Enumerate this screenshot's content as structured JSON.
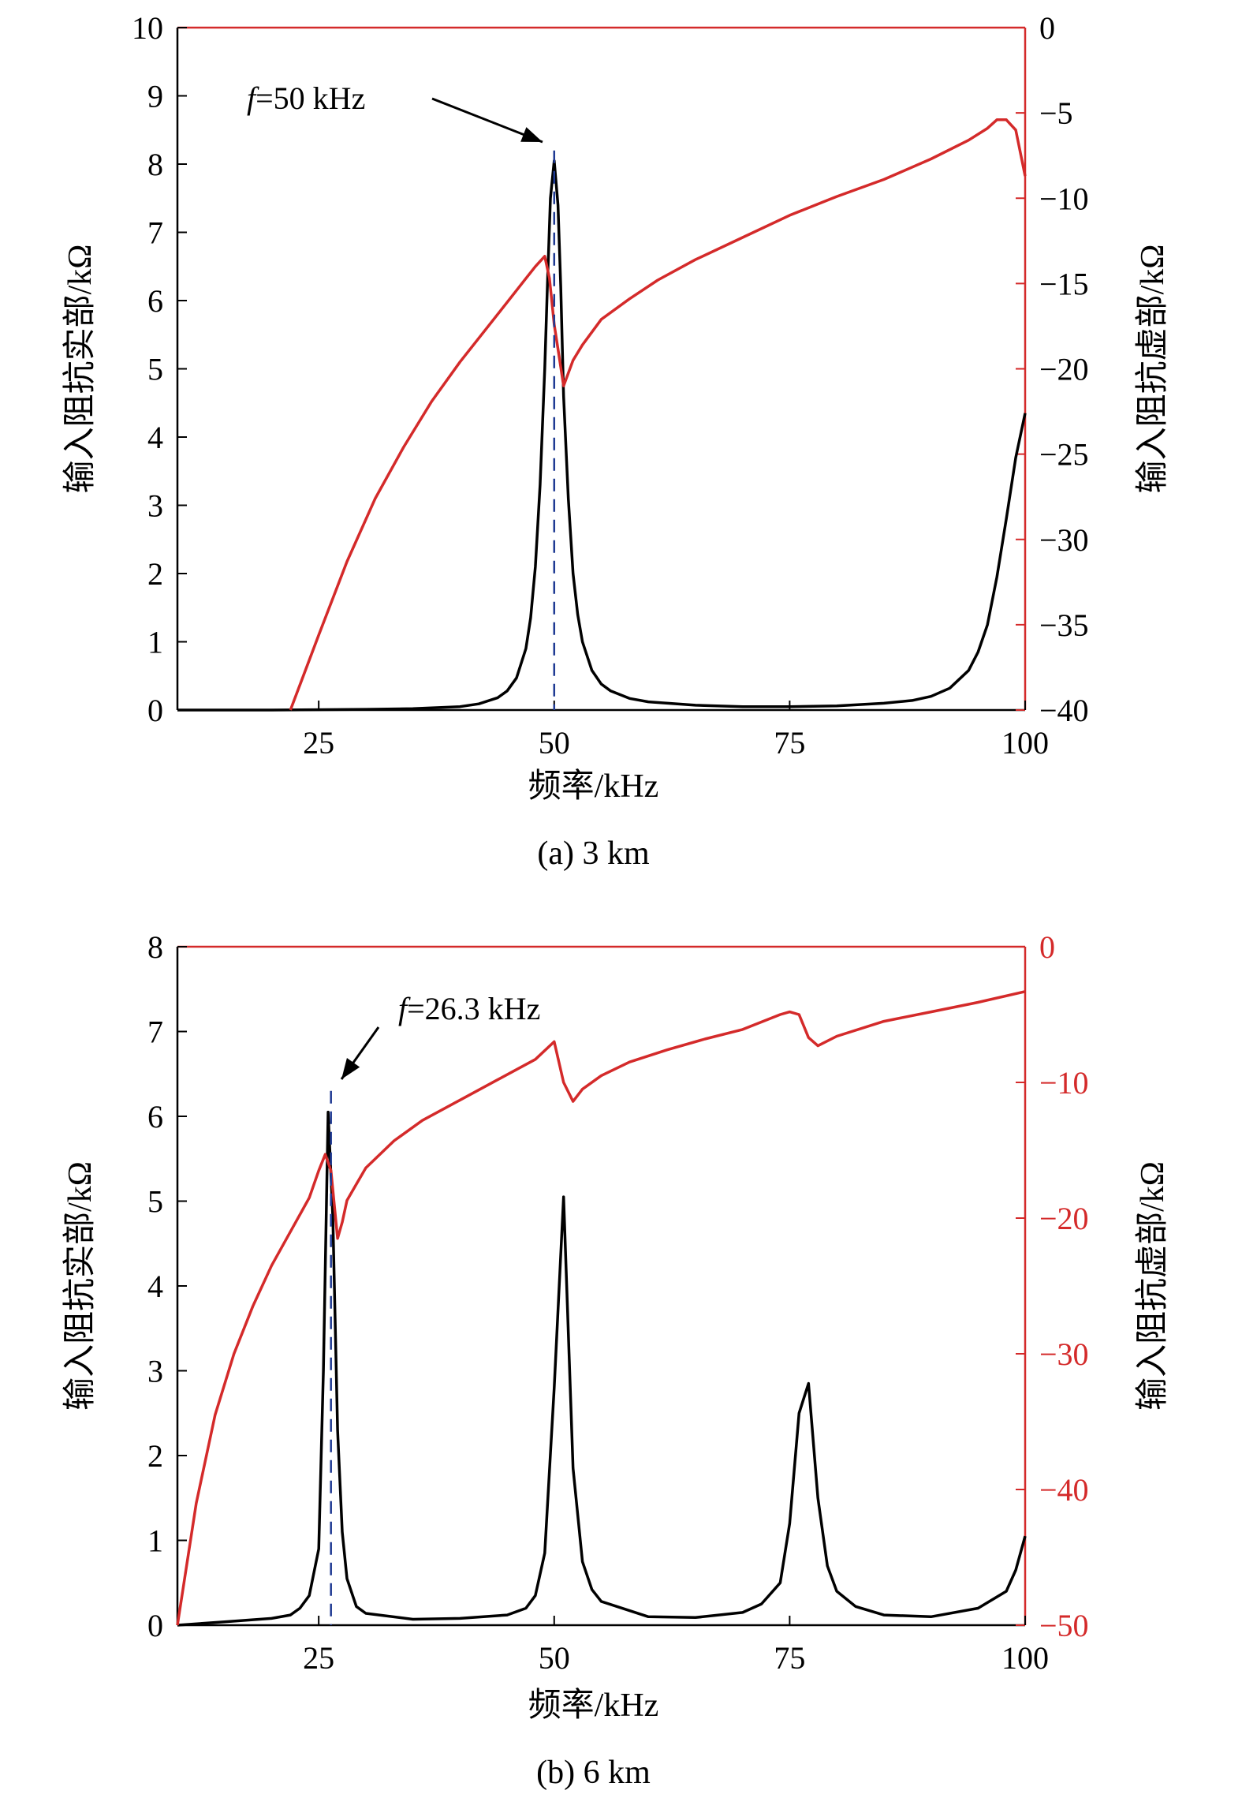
{
  "chart_data": [
    {
      "type": "line",
      "caption": "(a) 3 km",
      "xlabel": "频率/kHz",
      "ylabel_left": "输入阻抗实部/kΩ",
      "ylabel_right": "输入阻抗虚部/kΩ",
      "xlim": [
        10,
        100
      ],
      "xticks": [
        25,
        50,
        75,
        100
      ],
      "ylim_left": [
        0,
        10
      ],
      "yticks_left": [
        0,
        1,
        2,
        3,
        4,
        5,
        6,
        7,
        8,
        9,
        10
      ],
      "ylim_right": [
        -40,
        0
      ],
      "yticks_right": [
        -40,
        -35,
        -30,
        -25,
        -20,
        -15,
        -10,
        -5,
        0
      ],
      "grid": false,
      "right_axis_color": "#d42a2a",
      "annotation": {
        "text": "f=50 kHz",
        "italic_part": "f",
        "rest": "=50 kHz",
        "x": 50,
        "y": 8.2
      },
      "marker_line": {
        "x": 50,
        "y_top": 8.2,
        "color": "#1f3a93"
      },
      "series": [
        {
          "axis": "left",
          "color": "#000000",
          "x": [
            10,
            20,
            30,
            35,
            40,
            42,
            44,
            45,
            46,
            47,
            47.5,
            48,
            48.5,
            49,
            49.3,
            49.6,
            50,
            50.4,
            50.7,
            51,
            51.5,
            52,
            52.5,
            53,
            54,
            55,
            56,
            58,
            60,
            65,
            70,
            75,
            80,
            85,
            88,
            90,
            92,
            94,
            95,
            96,
            97,
            98,
            99,
            100
          ],
          "y": [
            0,
            0,
            0.01,
            0.02,
            0.05,
            0.09,
            0.18,
            0.28,
            0.47,
            0.9,
            1.35,
            2.1,
            3.3,
            5.0,
            6.3,
            7.5,
            8.05,
            7.4,
            6.2,
            4.6,
            3.1,
            2.0,
            1.4,
            1.0,
            0.58,
            0.38,
            0.28,
            0.17,
            0.12,
            0.07,
            0.05,
            0.05,
            0.06,
            0.1,
            0.14,
            0.2,
            0.32,
            0.58,
            0.85,
            1.25,
            1.95,
            2.8,
            3.7,
            4.35
          ]
        },
        {
          "axis": "right",
          "color": "#d42a2a",
          "x": [
            22,
            25,
            28,
            31,
            34,
            37,
            40,
            43,
            45,
            47,
            48,
            49,
            49.5,
            50,
            50.5,
            51,
            52,
            53,
            55,
            58,
            61,
            65,
            70,
            75,
            80,
            85,
            90,
            94,
            96,
            97,
            98,
            99,
            100
          ],
          "y": [
            -40,
            -35.6,
            -31.3,
            -27.6,
            -24.6,
            -21.9,
            -19.6,
            -17.5,
            -16.1,
            -14.7,
            -14,
            -13.4,
            -14.7,
            -17.4,
            -19.2,
            -21,
            -19.5,
            -18.6,
            -17.1,
            -15.9,
            -14.8,
            -13.6,
            -12.3,
            -11,
            -9.9,
            -8.9,
            -7.7,
            -6.6,
            -5.9,
            -5.4,
            -5.4,
            -6.0,
            -8.7
          ]
        }
      ]
    },
    {
      "type": "line",
      "caption": "(b) 6 km",
      "xlabel": "频率/kHz",
      "ylabel_left": "输入阻抗实部/kΩ",
      "ylabel_right": "输入阻抗虚部/kΩ",
      "xlim": [
        10,
        100
      ],
      "xticks": [
        25,
        50,
        75,
        100
      ],
      "ylim_left": [
        0,
        8
      ],
      "yticks_left": [
        0,
        1,
        2,
        3,
        4,
        5,
        6,
        7,
        8
      ],
      "ylim_right": [
        -50,
        0
      ],
      "yticks_right": [
        -50,
        -40,
        -30,
        -20,
        -10,
        0
      ],
      "grid": false,
      "right_axis_color": "#d42a2a",
      "annotation": {
        "text": "f=26.3 kHz",
        "italic_part": "f",
        "rest": "=26.3 kHz",
        "x": 26.3,
        "y": 6.3
      },
      "marker_line": {
        "x": 26.3,
        "y_top": 6.3,
        "color": "#1f3a93"
      },
      "series": [
        {
          "axis": "left",
          "color": "#000000",
          "x": [
            10,
            15,
            20,
            22,
            23,
            24,
            25,
            25.5,
            26,
            26.5,
            27,
            27.5,
            28,
            29,
            30,
            35,
            40,
            45,
            47,
            48,
            49,
            50,
            51,
            52,
            53,
            54,
            55,
            60,
            65,
            70,
            72,
            74,
            75,
            76,
            77,
            78,
            79,
            80,
            82,
            85,
            90,
            95,
            98,
            99,
            100
          ],
          "y": [
            0,
            0.04,
            0.08,
            0.12,
            0.2,
            0.35,
            0.9,
            3.0,
            6.05,
            4.8,
            2.3,
            1.1,
            0.55,
            0.22,
            0.14,
            0.07,
            0.08,
            0.12,
            0.2,
            0.35,
            0.85,
            2.8,
            5.05,
            1.85,
            0.75,
            0.42,
            0.28,
            0.1,
            0.09,
            0.15,
            0.25,
            0.5,
            1.2,
            2.5,
            2.85,
            1.5,
            0.7,
            0.4,
            0.22,
            0.12,
            0.1,
            0.2,
            0.4,
            0.65,
            1.05
          ]
        },
        {
          "axis": "right",
          "color": "#d42a2a",
          "x": [
            10,
            12,
            14,
            16,
            18,
            20,
            22,
            24,
            25,
            25.7,
            26.3,
            27,
            27.5,
            28,
            29,
            30,
            33,
            36,
            40,
            44,
            48,
            50,
            51,
            52,
            53,
            55,
            58,
            62,
            66,
            70,
            74,
            75,
            76,
            77,
            78,
            80,
            85,
            90,
            95,
            100
          ],
          "y": [
            -50,
            -41,
            -34.5,
            -30,
            -26.5,
            -23.5,
            -21,
            -18.5,
            -16.5,
            -15.3,
            -16.5,
            -21.5,
            -20.3,
            -18.7,
            -17.5,
            -16.3,
            -14.3,
            -12.8,
            -11.3,
            -9.8,
            -8.3,
            -7,
            -10,
            -11.4,
            -10.5,
            -9.5,
            -8.5,
            -7.6,
            -6.8,
            -6.1,
            -5,
            -4.8,
            -5,
            -6.7,
            -7.3,
            -6.6,
            -5.5,
            -4.8,
            -4.1,
            -3.3
          ]
        }
      ]
    }
  ]
}
